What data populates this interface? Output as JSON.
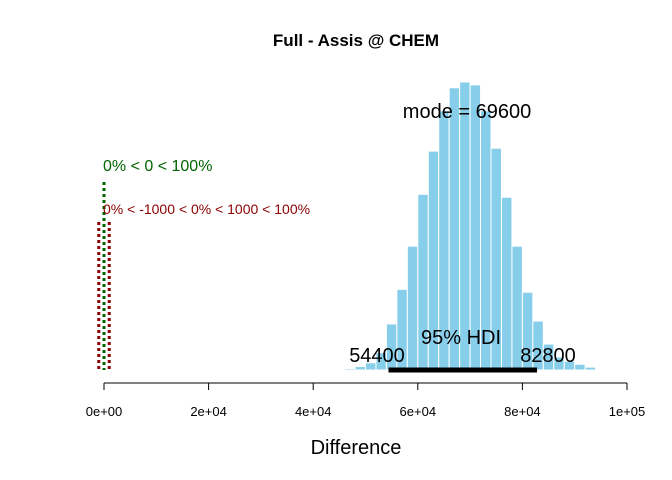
{
  "chart_data": {
    "type": "bar",
    "title": "Full - Assis @ CHEM",
    "xlabel": "Difference",
    "ylabel": "",
    "xlim": [
      0,
      100000
    ],
    "x_ticks": [
      0,
      20000,
      40000,
      60000,
      80000,
      100000
    ],
    "x_tick_labels": [
      "0e+00",
      "2e+04",
      "4e+04",
      "6e+04",
      "8e+04",
      "1e+05"
    ],
    "bar_color": "#87ceeb",
    "bin_width": 2000,
    "bins": [
      {
        "x0": 44000,
        "value": 0.002
      },
      {
        "x0": 46000,
        "value": 0.005
      },
      {
        "x0": 48000,
        "value": 0.012
      },
      {
        "x0": 50000,
        "value": 0.025
      },
      {
        "x0": 52000,
        "value": 0.06
      },
      {
        "x0": 54000,
        "value": 0.16
      },
      {
        "x0": 56000,
        "value": 0.28
      },
      {
        "x0": 58000,
        "value": 0.43
      },
      {
        "x0": 60000,
        "value": 0.61
      },
      {
        "x0": 62000,
        "value": 0.76
      },
      {
        "x0": 64000,
        "value": 0.9
      },
      {
        "x0": 66000,
        "value": 0.98
      },
      {
        "x0": 68000,
        "value": 1.0
      },
      {
        "x0": 70000,
        "value": 0.99
      },
      {
        "x0": 72000,
        "value": 0.9
      },
      {
        "x0": 74000,
        "value": 0.77
      },
      {
        "x0": 76000,
        "value": 0.6
      },
      {
        "x0": 78000,
        "value": 0.43
      },
      {
        "x0": 80000,
        "value": 0.27
      },
      {
        "x0": 82000,
        "value": 0.17
      },
      {
        "x0": 84000,
        "value": 0.09
      },
      {
        "x0": 86000,
        "value": 0.045
      },
      {
        "x0": 88000,
        "value": 0.03
      },
      {
        "x0": 90000,
        "value": 0.02
      },
      {
        "x0": 92000,
        "value": 0.01
      }
    ],
    "mode_label": "mode = 69600",
    "hdi": {
      "label": "95% HDI",
      "low": 54400,
      "high": 82800,
      "low_label": "54400",
      "high_label": "82800",
      "color": "#000000"
    },
    "comparison": {
      "value": 0,
      "label": "0% < 0 < 100%",
      "color": "#006400"
    },
    "rope": {
      "low": -1000,
      "high": 1000,
      "label": "0% < -1000 < 0% < 1000 < 100%",
      "color": "#8b0000"
    }
  }
}
